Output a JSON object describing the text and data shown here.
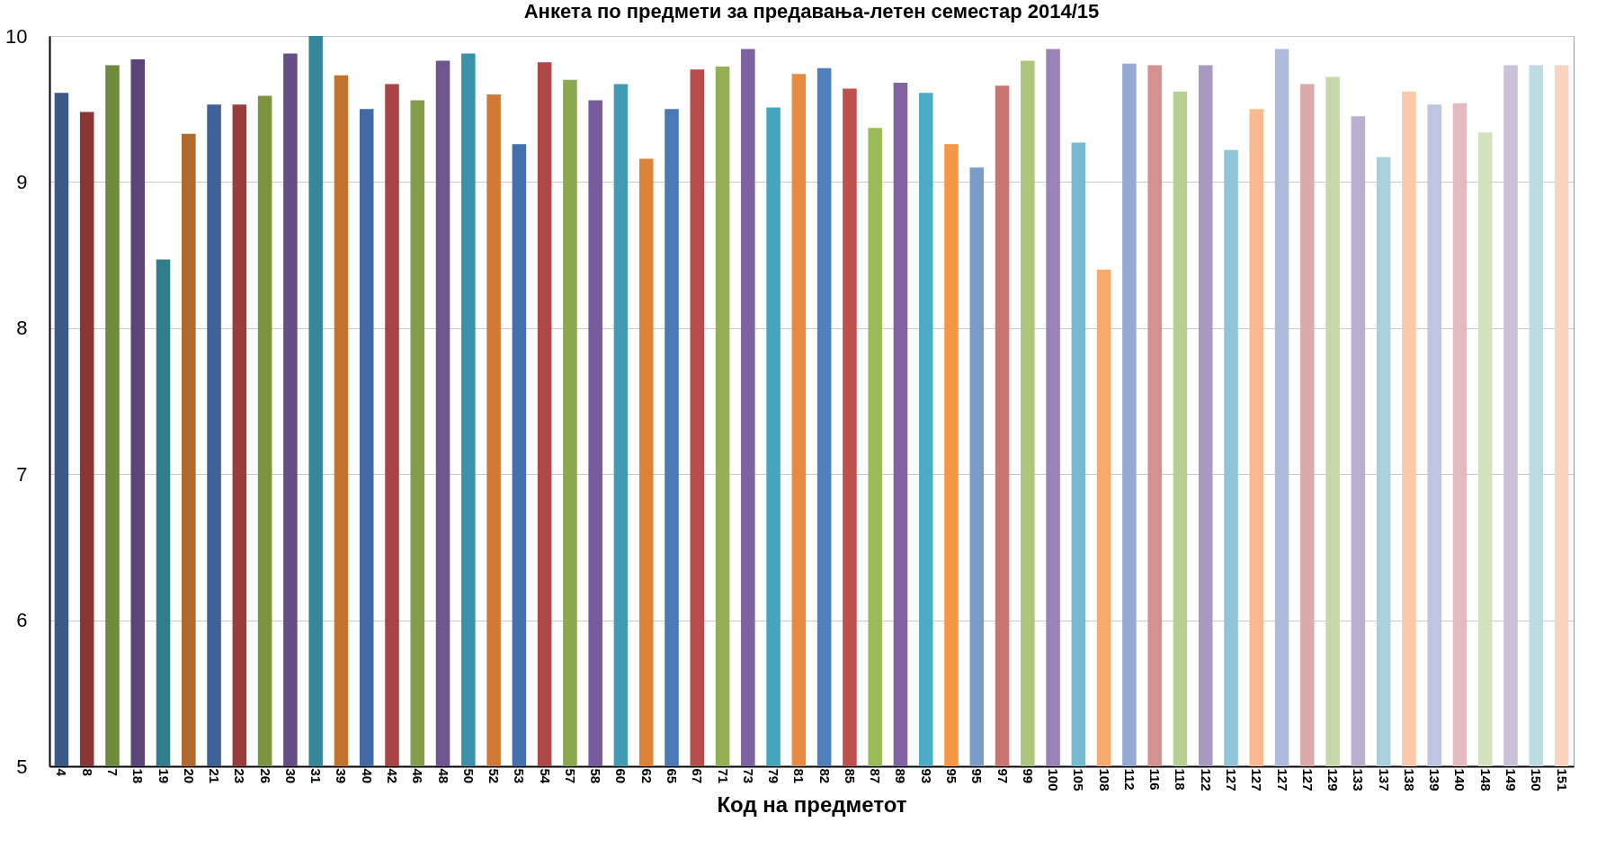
{
  "chart_data": {
    "type": "bar",
    "title": "Анкета по предмети за предавања-летен семестар 2014/15",
    "xlabel": "Код на предметот",
    "categories": [
      "4",
      "8",
      "7",
      "18",
      "19",
      "20",
      "21",
      "23",
      "26",
      "30",
      "31",
      "39",
      "40",
      "42",
      "46",
      "48",
      "50",
      "52",
      "53",
      "54",
      "57",
      "58",
      "60",
      "62",
      "65",
      "67",
      "71",
      "73",
      "79",
      "81",
      "82",
      "85",
      "87",
      "89",
      "93",
      "95",
      "95",
      "97",
      "99",
      "100",
      "105",
      "108",
      "112",
      "116",
      "118",
      "122",
      "127",
      "127",
      "127",
      "127",
      "129",
      "133",
      "137",
      "138",
      "139",
      "140",
      "148",
      "149",
      "150",
      "151"
    ],
    "values": [
      9.61,
      9.48,
      9.8,
      9.84,
      8.47,
      9.33,
      9.53,
      9.53,
      9.59,
      9.88,
      10.0,
      9.73,
      9.5,
      9.67,
      9.56,
      9.83,
      9.88,
      9.6,
      9.26,
      9.82,
      9.7,
      9.56,
      9.67,
      9.16,
      9.5,
      9.77,
      9.79,
      9.91,
      9.51,
      9.74,
      9.78,
      9.64,
      9.37,
      9.68,
      9.61,
      9.26,
      9.1,
      9.66,
      9.83,
      9.91,
      9.27,
      8.4,
      9.81,
      9.8,
      9.62,
      9.8,
      9.22,
      9.5,
      9.91,
      9.67,
      9.72,
      9.45,
      9.17,
      9.62,
      9.53,
      9.54,
      9.34,
      9.8,
      9.8,
      9.8
    ],
    "colors": [
      "#3b5a87",
      "#8b3535",
      "#6e8a3c",
      "#5a4478",
      "#327d8c",
      "#b06a2e",
      "#3e6298",
      "#9a3c3c",
      "#7a9440",
      "#654e86",
      "#35879a",
      "#c4722f",
      "#4169a3",
      "#a84444",
      "#829e48",
      "#6e5590",
      "#3a92a8",
      "#d07a36",
      "#4570ad",
      "#b04848",
      "#8ba84f",
      "#765c9a",
      "#3f9cb3",
      "#dc823a",
      "#4a78b8",
      "#b84b4b",
      "#93b054",
      "#7e62a3",
      "#45a5bd",
      "#e88a40",
      "#4e80bd",
      "#c0504d",
      "#9bbb59",
      "#8064a2",
      "#4bacc6",
      "#f79646",
      "#7b9cc9",
      "#cb7472",
      "#adc67d",
      "#9983b8",
      "#75bad1",
      "#f8a96e",
      "#95aad3",
      "#d49190",
      "#b8cf93",
      "#a99ac3",
      "#90c4d6",
      "#f9b88d",
      "#aebbd9",
      "#dcaaaa",
      "#c7d9aa",
      "#baafcf",
      "#a9d0de",
      "#fac8ab",
      "#bcc6e0",
      "#e2bcbc",
      "#d4e2bd",
      "#c9c2da",
      "#bddbe5",
      "#fbd2bc"
    ],
    "ylim": [
      5,
      10
    ],
    "yticks": [
      5,
      6,
      7,
      8,
      9,
      10
    ],
    "grid": "y",
    "legend": false
  }
}
